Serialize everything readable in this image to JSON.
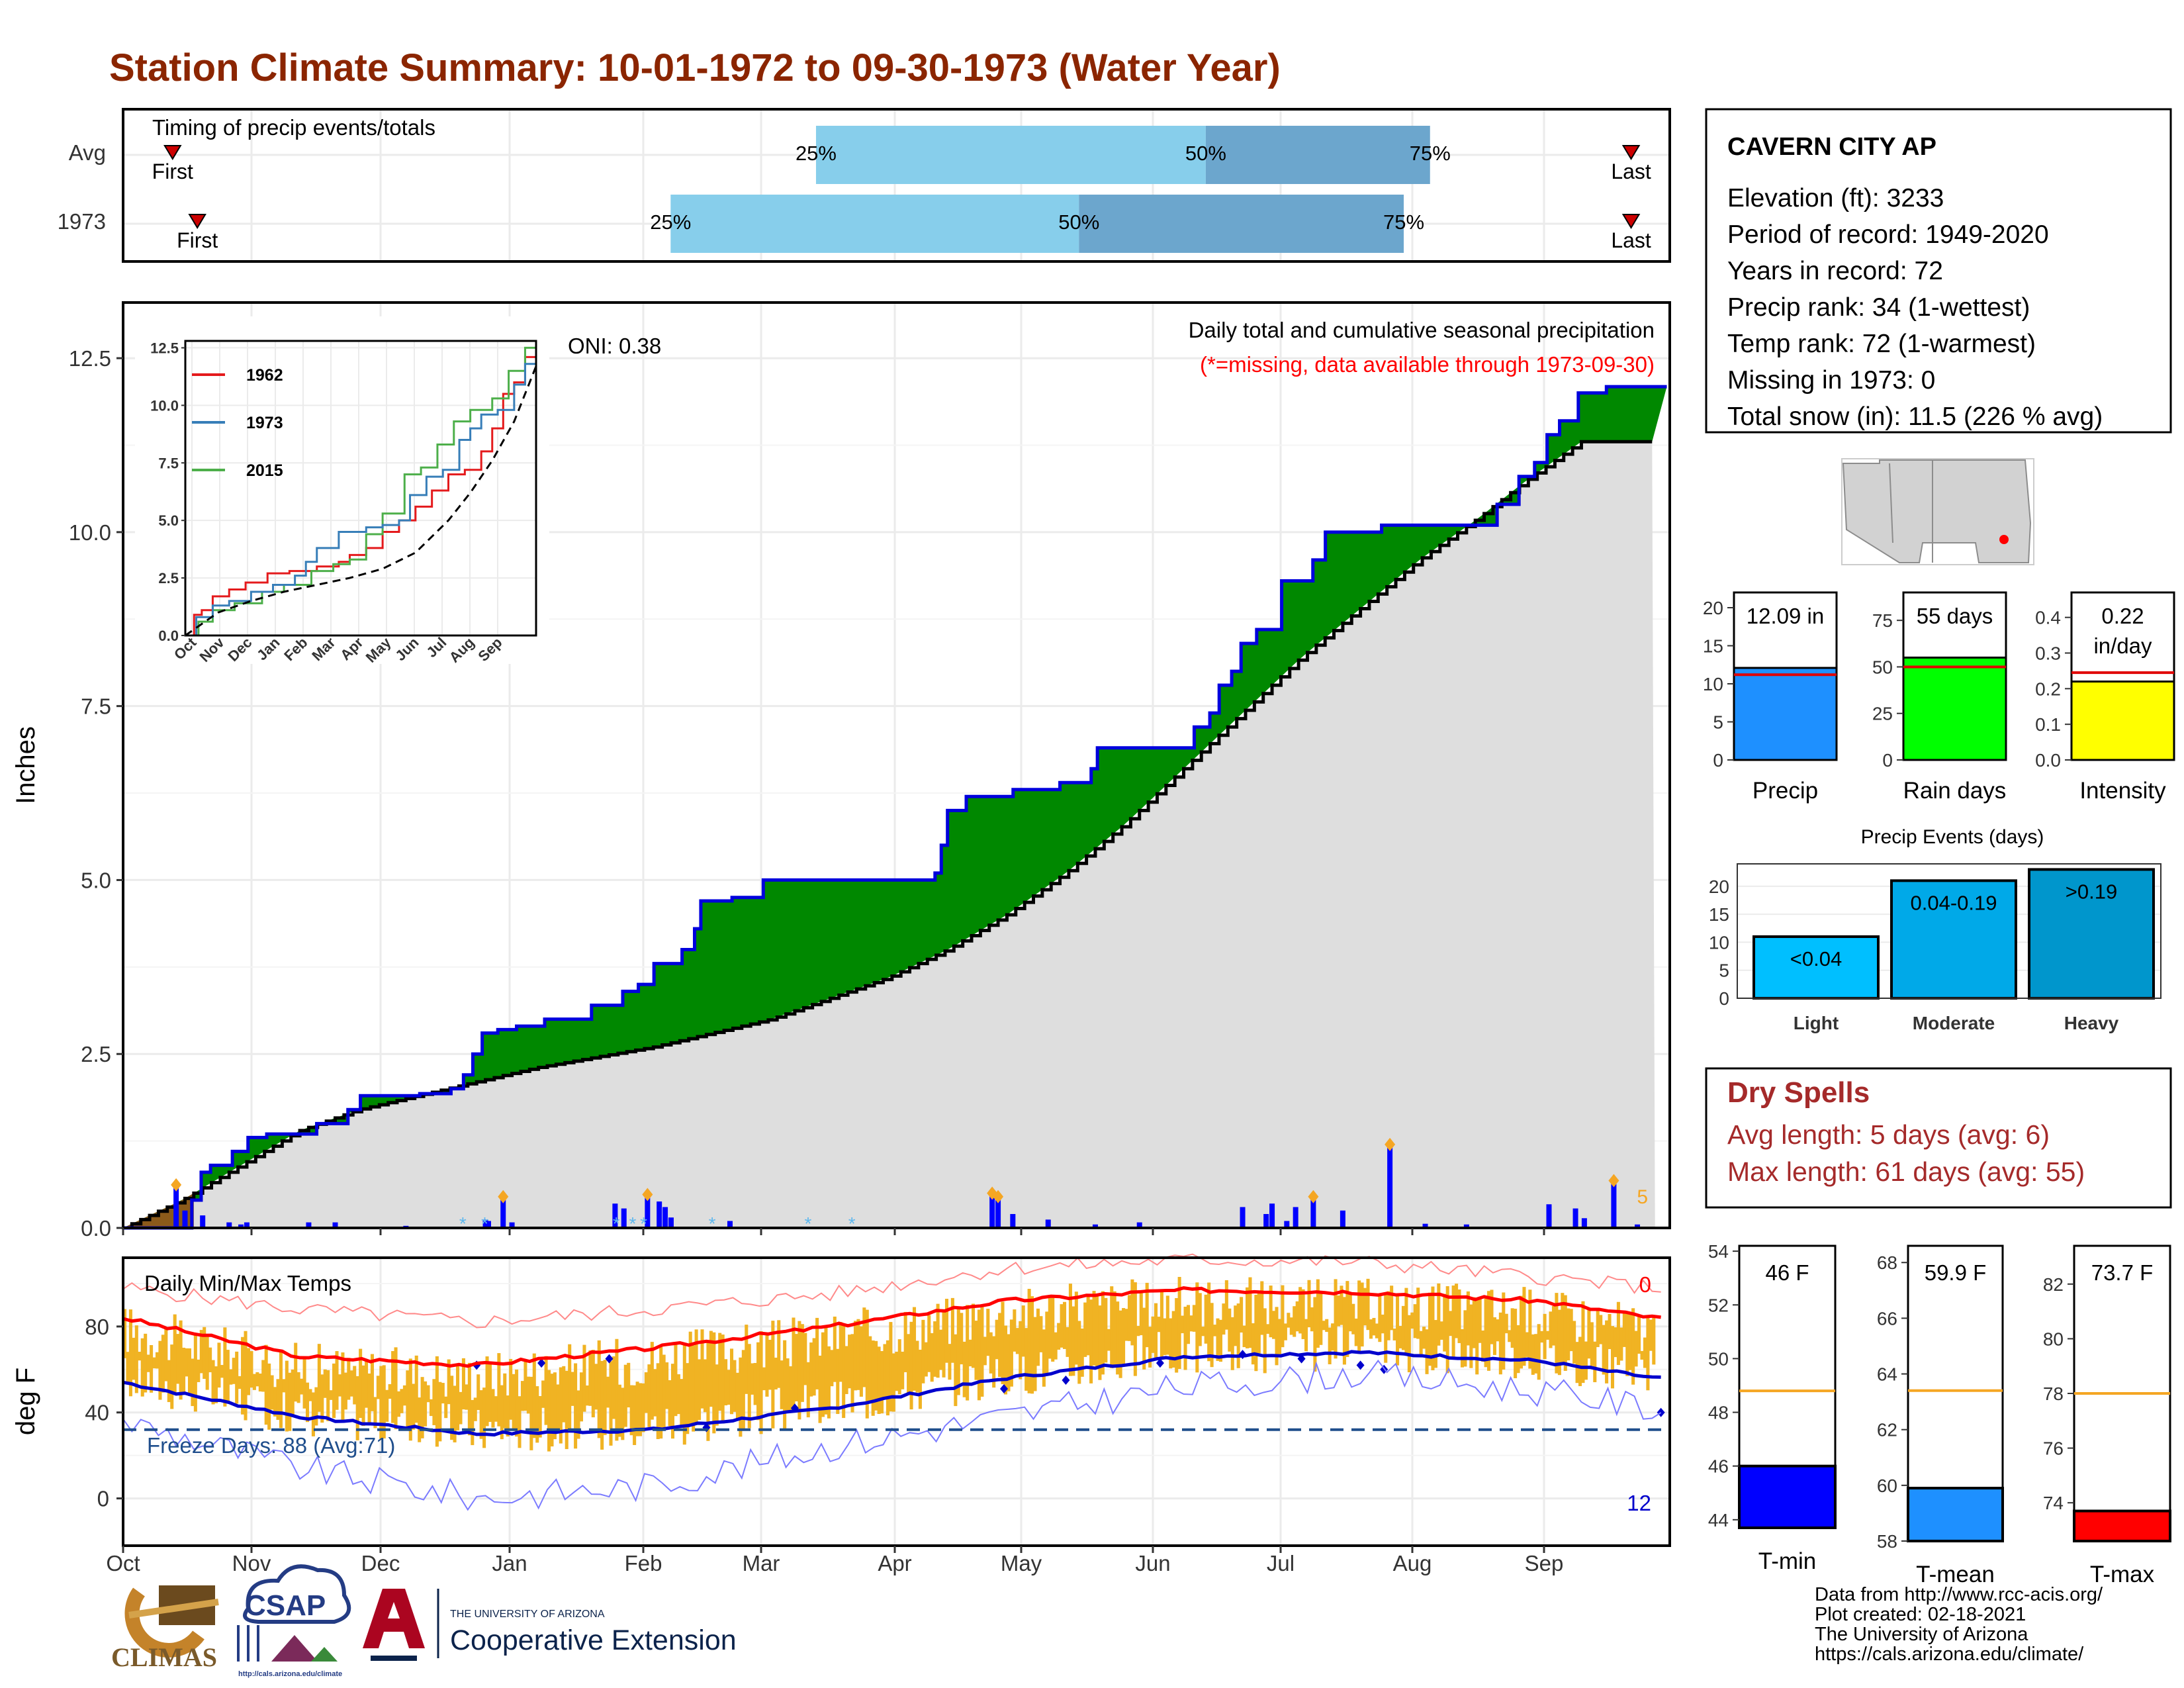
{
  "page": {
    "title": "Station Climate Summary: 10-01-1972 to 09-30-1973 (Water Year)"
  },
  "timing": {
    "label": "Timing of precip events/totals",
    "rows": [
      {
        "name": "Avg",
        "first_label": "First",
        "last_label": "Last",
        "p25": "25%",
        "p50": "50%",
        "p75": "75%"
      },
      {
        "name": "1973",
        "first_label": "First",
        "last_label": "Last",
        "p25": "25%",
        "p50": "50%",
        "p75": "75%"
      }
    ],
    "values": [
      {
        "first": 0.032,
        "q25": 0.448,
        "q50": 0.7,
        "q75": 0.845,
        "last": 0.975
      },
      {
        "first": 0.048,
        "q25": 0.354,
        "q50": 0.618,
        "q75": 0.828,
        "last": 0.975
      }
    ]
  },
  "station": {
    "name": "CAVERN CITY AP",
    "lines": [
      "Elevation (ft): 3233",
      "Period of record: 1949-2020",
      "Years in record: 72",
      "Precip rank: 34 (1-wettest)",
      "Temp rank: 72 (1-warmest)",
      "Missing in 1973: 0",
      "Total snow (in): 11.5 (226 % avg)"
    ]
  },
  "main": {
    "ylabel": "Inches",
    "annotation1": "Daily total and cumulative seasonal precipitation",
    "annotation2": "(*=missing, data available through 1973-09-30)",
    "oni": "ONI: 0.38",
    "corner_count": "5",
    "yticks": [
      "0.0",
      "2.5",
      "5.0",
      "7.5",
      "10.0",
      "12.5"
    ],
    "months": [
      "Oct",
      "Nov",
      "Dec",
      "Jan",
      "Feb",
      "Mar",
      "Apr",
      "May",
      "Jun",
      "Jul",
      "Aug",
      "Sep"
    ]
  },
  "inset": {
    "yticks": [
      "0.0",
      "2.5",
      "5.0",
      "7.5",
      "10.0",
      "12.5"
    ],
    "months": [
      "Oct",
      "Nov",
      "Dec",
      "Jan",
      "Feb",
      "Mar",
      "Apr",
      "May",
      "Jun",
      "Jul",
      "Aug",
      "Sep"
    ],
    "legend": [
      {
        "name": "1962",
        "color": "#e41a1c"
      },
      {
        "name": "1973",
        "color": "#377eb8"
      },
      {
        "name": "2015",
        "color": "#4daf4a"
      }
    ]
  },
  "temps": {
    "label": "Daily Min/Max Temps",
    "ylabel": "deg F",
    "freeze": "Freeze Days: 88 (Avg:71)",
    "hot_count": "0",
    "cold_count": "12",
    "yticks": [
      "0",
      "40",
      "80"
    ]
  },
  "bars": {
    "precip": {
      "label": "Precip",
      "value_text": "12.09 in",
      "value": 12.09,
      "avg": 11.2,
      "max": 22,
      "ticks": [
        "0",
        "5",
        "10",
        "15",
        "20"
      ],
      "color": "#1e90ff"
    },
    "raindays": {
      "label": "Rain days",
      "value_text": "55 days",
      "value": 55,
      "avg": 50,
      "max": 90,
      "ticks": [
        "0",
        "25",
        "50",
        "75"
      ],
      "color": "#00ff00"
    },
    "intensity": {
      "label": "Intensity",
      "value_text": "0.22",
      "value_text2": "in/day",
      "value": 0.22,
      "avg": 0.245,
      "max": 0.47,
      "ticks": [
        "0.0",
        "0.1",
        "0.2",
        "0.3",
        "0.4"
      ],
      "color": "#ffff00"
    }
  },
  "events": {
    "title": "Precip Events (days)",
    "ticks": [
      "0",
      "5",
      "10",
      "15",
      "20"
    ],
    "items": [
      {
        "label": "Light",
        "range": "<0.04",
        "value": 11,
        "color": "#00bfff"
      },
      {
        "label": "Moderate",
        "range": "0.04-0.19",
        "value": 21,
        "color": "#00a9e8"
      },
      {
        "label": "Heavy",
        "range": ">0.19",
        "value": 23,
        "color": "#0096cc"
      }
    ]
  },
  "dry": {
    "title": "Dry Spells",
    "avg": "Avg length: 5 days (avg: 6)",
    "max": "Max length: 61 days (avg: 55)"
  },
  "tbars": {
    "tmin": {
      "label": "T-min",
      "value_text": "46 F",
      "value": 46,
      "avg": 48.8,
      "min": 43.7,
      "max": 54.2,
      "ticks": [
        "44",
        "46",
        "48",
        "50",
        "52",
        "54"
      ],
      "color": "#0000ff"
    },
    "tmean": {
      "label": "T-mean",
      "value_text": "59.9 F",
      "value": 59.9,
      "avg": 63.4,
      "min": 58,
      "max": 68.6,
      "ticks": [
        "58",
        "60",
        "62",
        "64",
        "66",
        "68"
      ],
      "color": "#1e90ff"
    },
    "tmax": {
      "label": "T-max",
      "value_text": "73.7 F",
      "value": 73.7,
      "avg": 78,
      "min": 72.6,
      "max": 83.4,
      "ticks": [
        "74",
        "76",
        "78",
        "80",
        "82"
      ],
      "color": "#ff0000"
    }
  },
  "footer": {
    "lines": [
      "Data from http://www.rcc-acis.org/",
      "Plot created: 02-18-2021",
      "The University of Arizona",
      "https://cals.arizona.edu/climate/"
    ],
    "logos": {
      "climas": "CLIMAS",
      "csap": "CSAP",
      "csap_url": "http://cals.arizona.edu/climate",
      "ua_small": "THE UNIVERSITY OF ARIZONA",
      "ua_big": "Cooperative Extension"
    }
  },
  "chart_data": {
    "type": "area",
    "x_unit": "day of water year",
    "cumulative_1973": [
      [
        0,
        0.0
      ],
      [
        20,
        0.0
      ],
      [
        22,
        0.4
      ],
      [
        25,
        0.8
      ],
      [
        28,
        0.9
      ],
      [
        35,
        1.1
      ],
      [
        40,
        1.3
      ],
      [
        46,
        1.35
      ],
      [
        58,
        1.35
      ],
      [
        62,
        1.5
      ],
      [
        72,
        1.7
      ],
      [
        76,
        1.9
      ],
      [
        95,
        1.93
      ],
      [
        105,
        2.0
      ],
      [
        109,
        2.2
      ],
      [
        112,
        2.5
      ],
      [
        115,
        2.8
      ],
      [
        120,
        2.85
      ],
      [
        126,
        2.9
      ],
      [
        135,
        3.0
      ],
      [
        148,
        3.0
      ],
      [
        150,
        3.2
      ],
      [
        160,
        3.4
      ],
      [
        165,
        3.5
      ],
      [
        170,
        3.8
      ],
      [
        177,
        3.8
      ],
      [
        179,
        4.0
      ],
      [
        183,
        4.3
      ],
      [
        185,
        4.7
      ],
      [
        195,
        4.75
      ],
      [
        205,
        5.0
      ],
      [
        224,
        5.0
      ],
      [
        232,
        5.0
      ],
      [
        250,
        5.0
      ],
      [
        260,
        5.1
      ],
      [
        262,
        5.5
      ],
      [
        264,
        6.0
      ],
      [
        270,
        6.2
      ],
      [
        282,
        6.2
      ],
      [
        285,
        6.3
      ],
      [
        291,
        6.3
      ],
      [
        300,
        6.4
      ],
      [
        310,
        6.6
      ],
      [
        312,
        6.9
      ],
      [
        320,
        6.9
      ],
      [
        335,
        6.9
      ],
      [
        343,
        7.2
      ],
      [
        348,
        7.4
      ],
      [
        351,
        7.8
      ],
      [
        355,
        8.0
      ],
      [
        358,
        8.4
      ],
      [
        363,
        8.6
      ],
      [
        367,
        8.6
      ],
      [
        371,
        9.3
      ],
      [
        375,
        9.3
      ],
      [
        381,
        9.6
      ],
      [
        385,
        10.0
      ],
      [
        398,
        10.0
      ],
      [
        403,
        10.1
      ],
      [
        415,
        10.1
      ],
      [
        422,
        10.1
      ],
      [
        432,
        10.1
      ],
      [
        440,
        10.4
      ],
      [
        447,
        10.8
      ],
      [
        452,
        11.0
      ],
      [
        456,
        11.4
      ],
      [
        460,
        11.6
      ],
      [
        466,
        12.0
      ],
      [
        475,
        12.09
      ],
      [
        485,
        12.09
      ],
      [
        495,
        12.09
      ]
    ],
    "cumulative_avg": [
      [
        0,
        0.0
      ],
      [
        20,
        0.4
      ],
      [
        40,
        0.9
      ],
      [
        60,
        1.4
      ],
      [
        80,
        1.7
      ],
      [
        100,
        1.9
      ],
      [
        120,
        2.1
      ],
      [
        140,
        2.3
      ],
      [
        160,
        2.45
      ],
      [
        180,
        2.6
      ],
      [
        200,
        2.8
      ],
      [
        220,
        3.0
      ],
      [
        240,
        3.3
      ],
      [
        260,
        3.6
      ],
      [
        280,
        4.0
      ],
      [
        300,
        4.5
      ],
      [
        320,
        5.1
      ],
      [
        340,
        5.8
      ],
      [
        360,
        6.6
      ],
      [
        380,
        7.4
      ],
      [
        400,
        8.2
      ],
      [
        420,
        8.9
      ],
      [
        440,
        9.6
      ],
      [
        460,
        10.2
      ],
      [
        475,
        10.7
      ],
      [
        495,
        11.3
      ]
    ],
    "inset_series": {
      "1962": [
        [
          0,
          0
        ],
        [
          8,
          0.9
        ],
        [
          15,
          1.1
        ],
        [
          25,
          1.7
        ],
        [
          40,
          2.0
        ],
        [
          55,
          2.3
        ],
        [
          75,
          2.7
        ],
        [
          95,
          2.8
        ],
        [
          120,
          3.0
        ],
        [
          140,
          3.2
        ],
        [
          150,
          3.5
        ],
        [
          165,
          3.8
        ],
        [
          180,
          4.5
        ],
        [
          195,
          5.0
        ],
        [
          210,
          5.6
        ],
        [
          225,
          6.3
        ],
        [
          240,
          7.0
        ],
        [
          255,
          7.2
        ],
        [
          270,
          8.0
        ],
        [
          280,
          9.0
        ],
        [
          290,
          10.5
        ],
        [
          300,
          11.0
        ],
        [
          310,
          12.1
        ],
        [
          320,
          12.7
        ]
      ],
      "1973": [
        [
          0,
          0
        ],
        [
          10,
          0.8
        ],
        [
          25,
          1.3
        ],
        [
          40,
          1.5
        ],
        [
          60,
          1.9
        ],
        [
          80,
          2.2
        ],
        [
          100,
          2.6
        ],
        [
          110,
          3.2
        ],
        [
          120,
          3.8
        ],
        [
          140,
          4.5
        ],
        [
          165,
          4.7
        ],
        [
          180,
          4.8
        ],
        [
          195,
          5.0
        ],
        [
          205,
          6.1
        ],
        [
          220,
          6.9
        ],
        [
          235,
          7.2
        ],
        [
          250,
          8.5
        ],
        [
          260,
          9.0
        ],
        [
          270,
          9.6
        ],
        [
          285,
          9.8
        ],
        [
          300,
          10.9
        ],
        [
          310,
          11.8
        ],
        [
          320,
          12.4
        ]
      ],
      "2015": [
        [
          0,
          0
        ],
        [
          12,
          0.6
        ],
        [
          25,
          1.1
        ],
        [
          45,
          1.4
        ],
        [
          70,
          1.9
        ],
        [
          90,
          2.2
        ],
        [
          115,
          2.8
        ],
        [
          135,
          3.1
        ],
        [
          150,
          3.3
        ],
        [
          165,
          4.4
        ],
        [
          180,
          5.3
        ],
        [
          200,
          7.0
        ],
        [
          215,
          7.3
        ],
        [
          230,
          8.3
        ],
        [
          245,
          9.3
        ],
        [
          260,
          9.8
        ],
        [
          280,
          10.3
        ],
        [
          295,
          11.5
        ],
        [
          310,
          12.5
        ],
        [
          320,
          12.8
        ]
      ],
      "avg": [
        [
          0,
          0
        ],
        [
          30,
          1.0
        ],
        [
          60,
          1.5
        ],
        [
          90,
          1.9
        ],
        [
          120,
          2.2
        ],
        [
          150,
          2.5
        ],
        [
          180,
          2.9
        ],
        [
          210,
          3.6
        ],
        [
          240,
          5.0
        ],
        [
          260,
          6.2
        ],
        [
          280,
          7.6
        ],
        [
          300,
          9.3
        ],
        [
          320,
          11.7
        ]
      ]
    },
    "daily_precip": [
      [
        18,
        0.62
      ],
      [
        21,
        0.25
      ],
      [
        27,
        0.18
      ],
      [
        36,
        0.08
      ],
      [
        40,
        0.05
      ],
      [
        42,
        0.08
      ],
      [
        63,
        0.08
      ],
      [
        72,
        0.08
      ],
      [
        96,
        0.03
      ],
      [
        123,
        0.12
      ],
      [
        124,
        0.1
      ],
      [
        129,
        0.45
      ],
      [
        132,
        0.08
      ],
      [
        167,
        0.35
      ],
      [
        170,
        0.28
      ],
      [
        178,
        0.48
      ],
      [
        182,
        0.38
      ],
      [
        184,
        0.3
      ],
      [
        186,
        0.15
      ],
      [
        206,
        0.1
      ],
      [
        295,
        0.5
      ],
      [
        297,
        0.45
      ],
      [
        302,
        0.2
      ],
      [
        314,
        0.12
      ],
      [
        330,
        0.05
      ],
      [
        345,
        0.08
      ],
      [
        380,
        0.3
      ],
      [
        388,
        0.2
      ],
      [
        390,
        0.35
      ],
      [
        395,
        0.1
      ],
      [
        398,
        0.3
      ],
      [
        404,
        0.45
      ],
      [
        414,
        0.25
      ],
      [
        430,
        1.2
      ],
      [
        442,
        0.06
      ],
      [
        456,
        0.05
      ],
      [
        484,
        0.34
      ],
      [
        493,
        0.28
      ],
      [
        496,
        0.14
      ],
      [
        506,
        0.68
      ],
      [
        514,
        0.05
      ]
    ],
    "temp_avg_max": [
      [
        0,
        84
      ],
      [
        60,
        66
      ],
      [
        120,
        62
      ],
      [
        180,
        70
      ],
      [
        240,
        80
      ],
      [
        300,
        92
      ],
      [
        360,
        97
      ],
      [
        420,
        96
      ],
      [
        480,
        92
      ],
      [
        520,
        84
      ]
    ],
    "temp_avg_min": [
      [
        0,
        54
      ],
      [
        60,
        38
      ],
      [
        120,
        30
      ],
      [
        180,
        32
      ],
      [
        240,
        42
      ],
      [
        300,
        56
      ],
      [
        360,
        66
      ],
      [
        420,
        68
      ],
      [
        480,
        64
      ],
      [
        520,
        56
      ]
    ],
    "temp_record_max": [
      [
        0,
        98
      ],
      [
        60,
        88
      ],
      [
        120,
        82
      ],
      [
        180,
        88
      ],
      [
        240,
        95
      ],
      [
        300,
        107
      ],
      [
        360,
        111
      ],
      [
        420,
        110
      ],
      [
        480,
        103
      ],
      [
        520,
        98
      ]
    ],
    "temp_record_min": [
      [
        0,
        36
      ],
      [
        60,
        14
      ],
      [
        120,
        0
      ],
      [
        180,
        6
      ],
      [
        240,
        24
      ],
      [
        300,
        38
      ],
      [
        360,
        52
      ],
      [
        420,
        58
      ],
      [
        480,
        50
      ],
      [
        520,
        42
      ]
    ],
    "freeze_line": 32,
    "temp_ylim": [
      -22,
      112
    ],
    "precip_ylim": [
      0,
      13.3
    ]
  }
}
